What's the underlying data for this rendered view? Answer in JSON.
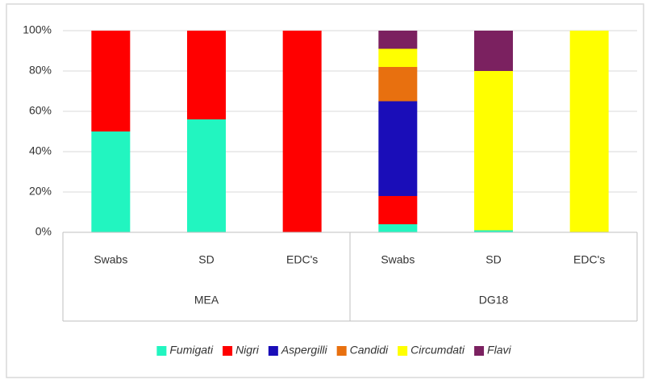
{
  "chart_data": {
    "type": "stacked_bar",
    "categories": [
      "Swabs",
      "SD",
      "EDC's",
      "Swabs",
      "SD",
      "EDC's"
    ],
    "groups": [
      "MEA",
      "DG18"
    ],
    "series": [
      {
        "name": "Fumigati",
        "color": "#22f5c0",
        "values": [
          50,
          56,
          0,
          4,
          1,
          0
        ]
      },
      {
        "name": "Nigri",
        "color": "#ff0000",
        "values": [
          50,
          44,
          100,
          14,
          0,
          0
        ]
      },
      {
        "name": "Aspergilli",
        "color": "#1a0db8",
        "values": [
          0,
          0,
          0,
          47,
          0,
          0
        ]
      },
      {
        "name": "Candidi",
        "color": "#e8700f",
        "values": [
          0,
          0,
          0,
          17,
          0,
          0
        ]
      },
      {
        "name": "Circumdati",
        "color": "#ffff00",
        "values": [
          0,
          0,
          0,
          9,
          79,
          100
        ]
      },
      {
        "name": "Flavi",
        "color": "#7b2160",
        "values": [
          0,
          0,
          0,
          9,
          20,
          0
        ]
      }
    ],
    "ylim": [
      0,
      100
    ],
    "yticks": [
      {
        "value": 0,
        "label": "0%"
      },
      {
        "value": 20,
        "label": "20%"
      },
      {
        "value": 40,
        "label": "40%"
      },
      {
        "value": 60,
        "label": "60%"
      },
      {
        "value": 80,
        "label": "80%"
      },
      {
        "value": 100,
        "label": "100%"
      }
    ],
    "grid": true,
    "legend": "bottom"
  }
}
